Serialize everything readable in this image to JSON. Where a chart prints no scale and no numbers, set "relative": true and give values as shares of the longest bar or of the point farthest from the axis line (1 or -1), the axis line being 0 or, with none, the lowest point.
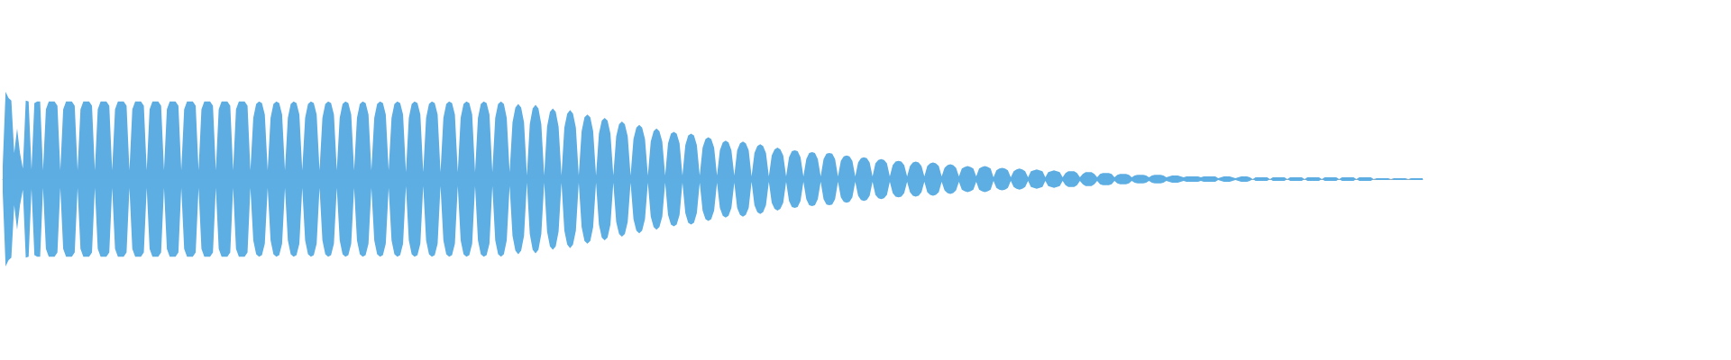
{
  "chart_data": {
    "type": "area",
    "relative": true,
    "categories": [
      null,
      null,
      null,
      null,
      null,
      null,
      null,
      null,
      null,
      null,
      null,
      null,
      null,
      null,
      null,
      null,
      null,
      null,
      null,
      null,
      null,
      null,
      null,
      null,
      null,
      null,
      null,
      null,
      null,
      null,
      null,
      null,
      null,
      null,
      null,
      null,
      null,
      null,
      null,
      null,
      null,
      null,
      null,
      null,
      null,
      null,
      null,
      null,
      null,
      null,
      null,
      null,
      null,
      null,
      null,
      null,
      null,
      null,
      null,
      null,
      null,
      null,
      null,
      null,
      null,
      null,
      null,
      null,
      null,
      null,
      null,
      null,
      null,
      null,
      null,
      null,
      null,
      null,
      null,
      null,
      null,
      null,
      null,
      null,
      null,
      null,
      null,
      null,
      null,
      null,
      null,
      null,
      null,
      null,
      null,
      null,
      null,
      null,
      null,
      null,
      null,
      null,
      null,
      null,
      null,
      null,
      null,
      null,
      null,
      null,
      null,
      null,
      null,
      null,
      null,
      null,
      null,
      null,
      null,
      null,
      null,
      null,
      null,
      null,
      null,
      null,
      null,
      null,
      null,
      null,
      null,
      null,
      null,
      null,
      null,
      null,
      null,
      null,
      null,
      null,
      null,
      null,
      null,
      null,
      null,
      null,
      null,
      null,
      null,
      null,
      null,
      null,
      null,
      null,
      null,
      null,
      null,
      null,
      null,
      null,
      null,
      null,
      null,
      null,
      null,
      null,
      null,
      null,
      null,
      null,
      null,
      null,
      null,
      null,
      null,
      null,
      null,
      null,
      null,
      null,
      null,
      null,
      null,
      null,
      null,
      null,
      null,
      null,
      null,
      null,
      null,
      null,
      null,
      null,
      null,
      null,
      null,
      null,
      null,
      null,
      null,
      null,
      null,
      null,
      null,
      null,
      null,
      null,
      null,
      null,
      null,
      null,
      null,
      null,
      null,
      null,
      null,
      null,
      null,
      null,
      null,
      null,
      null,
      null,
      null,
      null,
      null,
      null,
      null,
      null,
      null,
      null,
      null,
      null,
      null,
      null,
      null,
      null,
      null,
      null,
      null,
      null,
      null,
      null,
      null,
      null,
      null,
      null,
      null,
      null,
      null,
      null,
      null,
      null,
      null,
      null,
      null,
      null,
      null,
      null,
      null,
      null,
      null,
      null,
      null,
      null,
      null,
      null,
      null,
      null,
      null,
      null,
      null,
      null,
      null,
      null,
      null,
      null,
      null,
      null,
      null,
      null,
      null,
      null,
      null,
      null,
      null,
      null,
      null,
      null,
      null,
      null,
      null,
      null,
      null,
      null,
      null,
      null,
      null,
      null,
      null,
      null,
      null,
      null,
      null,
      null,
      null,
      null,
      null,
      null,
      null,
      null,
      null,
      null,
      null,
      null,
      null,
      null,
      null,
      null,
      null,
      null,
      null,
      null,
      null,
      null,
      null,
      null,
      null,
      null,
      null,
      null,
      null,
      null,
      null,
      null,
      null,
      null,
      null,
      null,
      null,
      null,
      null,
      null,
      null,
      null,
      null,
      null,
      null,
      null,
      null,
      null,
      null,
      null,
      null,
      null,
      null,
      null,
      null,
      null,
      null,
      null,
      null,
      null,
      null,
      null,
      null,
      null,
      null,
      null,
      null,
      null,
      null,
      null,
      null,
      null,
      null,
      null,
      null,
      null,
      null,
      null,
      null,
      null,
      null,
      null,
      null,
      null,
      null,
      null,
      null,
      null,
      null,
      null,
      null,
      null,
      null,
      null,
      null,
      null,
      null,
      null,
      null,
      null,
      null,
      null,
      null,
      null,
      null,
      null,
      null,
      null,
      null,
      null,
      null,
      null,
      null,
      null,
      null,
      null,
      null,
      null,
      null,
      null,
      null,
      null,
      null,
      null,
      null,
      null,
      null,
      null,
      null,
      null,
      null,
      null,
      null,
      null,
      null,
      null,
      null,
      null,
      null,
      null,
      null,
      null,
      null,
      null,
      null,
      null,
      null,
      null,
      null,
      null,
      null,
      null,
      null,
      null,
      null,
      null,
      null,
      null,
      null,
      null,
      null,
      null,
      null,
      null,
      null,
      null,
      null,
      null,
      null,
      null,
      null,
      null,
      null,
      null,
      null,
      null,
      null,
      null,
      null,
      null,
      null,
      null,
      null,
      null,
      null,
      null,
      null,
      null,
      null,
      null
    ],
    "series": [
      {
        "color": "#5dade2",
        "values": [
          0.15,
          1,
          0.93,
          0.9,
          0.3,
          0.58,
          0.3,
          0.12,
          0.9,
          0.89,
          0.11,
          0.87,
          0.89,
          0.89,
          0.1,
          0.8,
          0.89,
          0.89,
          0.89,
          0.84,
          0.1,
          0.8,
          0.89,
          0.89,
          0.89,
          0.84,
          0.1,
          0.8,
          0.89,
          0.89,
          0.89,
          0.84,
          0.1,
          0.8,
          0.89,
          0.89,
          0.89,
          0.84,
          0.1,
          0.8,
          0.89,
          0.89,
          0.89,
          0.84,
          0.1,
          0.8,
          0.89,
          0.89,
          0.89,
          0.84,
          0.1,
          0.8,
          0.89,
          0.89,
          0.89,
          0.84,
          0.1,
          0.8,
          0.89,
          0.89,
          0.89,
          0.84,
          0.1,
          0.8,
          0.89,
          0.89,
          0.89,
          0.84,
          0.1,
          0.8,
          0.89,
          0.89,
          0.89,
          0.84,
          0.1,
          0.8,
          0.89,
          0.89,
          0.89,
          0.84,
          0.1,
          0.8,
          0.89,
          0.89,
          0.89,
          0.84,
          0.1,
          0.7,
          0.86,
          0.89,
          0.87,
          0.74,
          0.1,
          0.7,
          0.86,
          0.89,
          0.87,
          0.74,
          0.1,
          0.7,
          0.86,
          0.89,
          0.87,
          0.74,
          0.1,
          0.7,
          0.86,
          0.89,
          0.87,
          0.74,
          0.1,
          0.7,
          0.86,
          0.89,
          0.87,
          0.74,
          0.1,
          0.7,
          0.86,
          0.89,
          0.87,
          0.74,
          0.1,
          0.7,
          0.86,
          0.89,
          0.87,
          0.74,
          0.1,
          0.7,
          0.86,
          0.89,
          0.87,
          0.74,
          0.1,
          0.7,
          0.86,
          0.89,
          0.87,
          0.74,
          0.08,
          0.7,
          0.86,
          0.89,
          0.87,
          0.74,
          0.08,
          0.7,
          0.86,
          0.89,
          0.87,
          0.74,
          0.08,
          0.7,
          0.86,
          0.89,
          0.87,
          0.74,
          0.08,
          0.7,
          0.86,
          0.89,
          0.87,
          0.74,
          0.08,
          0.7,
          0.86,
          0.89,
          0.87,
          0.74,
          0.08,
          0.7,
          0.86,
          0.89,
          0.86,
          0.7,
          0.08,
          0.65,
          0.82,
          0.86,
          0.82,
          0.65,
          0.04,
          0.63,
          0.81,
          0.85,
          0.81,
          0.63,
          0.04,
          0.6,
          0.77,
          0.81,
          0.77,
          0.6,
          0.04,
          0.59,
          0.75,
          0.79,
          0.75,
          0.59,
          0.04,
          0.55,
          0.71,
          0.74,
          0.71,
          0.55,
          0.04,
          0.52,
          0.67,
          0.7,
          0.67,
          0.52,
          0.04,
          0.49,
          0.63,
          0.66,
          0.63,
          0.49,
          0.04,
          0.46,
          0.59,
          0.62,
          0.59,
          0.46,
          0.04,
          0.43,
          0.55,
          0.58,
          0.55,
          0.43,
          0.04,
          0.41,
          0.52,
          0.54,
          0.52,
          0.41,
          0.04,
          0.39,
          0.5,
          0.52,
          0.5,
          0.39,
          0.04,
          0.36,
          0.46,
          0.48,
          0.46,
          0.36,
          0.04,
          0.33,
          0.42,
          0.44,
          0.42,
          0.33,
          0.04,
          0.33,
          0.41,
          0.43,
          0.41,
          0.33,
          0.03,
          0.3,
          0.38,
          0.4,
          0.38,
          0.3,
          0.03,
          0.27,
          0.34,
          0.36,
          0.34,
          0.27,
          0.03,
          0.25,
          0.32,
          0.33,
          0.32,
          0.25,
          0.03,
          0.23,
          0.3,
          0.31,
          0.3,
          0.23,
          0.03,
          0.23,
          0.29,
          0.3,
          0.29,
          0.23,
          0.03,
          0.21,
          0.26,
          0.27,
          0.26,
          0.21,
          0.03,
          0.19,
          0.24,
          0.25,
          0.24,
          0.19,
          0.03,
          0.18,
          0.22,
          0.23,
          0.22,
          0.18,
          0.03,
          0.16,
          0.2,
          0.21,
          0.2,
          0.16,
          0.03,
          0.15,
          0.19,
          0.2,
          0.19,
          0.15,
          0.03,
          0.15,
          0.18,
          0.19,
          0.18,
          0.15,
          0.03,
          0.13,
          0.16,
          0.17,
          0.16,
          0.13,
          0.03,
          0.12,
          0.14,
          0.15,
          0.14,
          0.12,
          0.03,
          0.12,
          0.14,
          0.15,
          0.14,
          0.12,
          0.02,
          0.1,
          0.12,
          0.13,
          0.12,
          0.1,
          0.02,
          0.09,
          0.11,
          0.12,
          0.11,
          0.09,
          0.02,
          0.09,
          0.1,
          0.11,
          0.1,
          0.09,
          0.02,
          0.08,
          0.09,
          0.1,
          0.09,
          0.08,
          0.02,
          0.07,
          0.09,
          0.09,
          0.09,
          0.07,
          0.02,
          0.06,
          0.08,
          0.08,
          0.08,
          0.06,
          0.02,
          0.06,
          0.07,
          0.07,
          0.07,
          0.06,
          0.02,
          0.05,
          0.06,
          0.06,
          0.06,
          0.05,
          0.02,
          0.04,
          0.05,
          0.05,
          0.05,
          0.04,
          0.02,
          0.04,
          0.05,
          0.05,
          0.05,
          0.04,
          0.02,
          0.03,
          0.04,
          0.04,
          0.04,
          0.03,
          0.02,
          0.03,
          0.03,
          0.03,
          0.03,
          0.03,
          0.02,
          0.03,
          0.03,
          0.03,
          0.03,
          0.03,
          0.01,
          0.02,
          0.03,
          0.03,
          0.03,
          0.02,
          0.01,
          0.02,
          0.03,
          0.03,
          0.03,
          0.02,
          0,
          0.02,
          0.02,
          0.02,
          0.02,
          0.02,
          0,
          0.02,
          0.02,
          0.02,
          0.02,
          0.02,
          0,
          0.02,
          0.02,
          0.02,
          0.02,
          0.02,
          0,
          0.02,
          0.02,
          0.02,
          0.02,
          0.02,
          0,
          0.02,
          0.02,
          0.02,
          0.02,
          0.02,
          0,
          0.02,
          0.02,
          0.02,
          0.02,
          0.02,
          0,
          0.02,
          0.02,
          0.02,
          0.02,
          0.02,
          0,
          0.01,
          0.01,
          0.01,
          0.01,
          0.01,
          0,
          0.01,
          0.01,
          0.01,
          0.01,
          0.01,
          0,
          0.01,
          0.01,
          0.01,
          0.01,
          0.01
        ]
      },
      {
        "color": "#5daee2",
        "values": [
          -0.15,
          -1,
          -0.93,
          -0.9,
          -0.3,
          -0.58,
          -0.3,
          -0.12,
          -0.9,
          -0.89,
          -0.11,
          -0.87,
          -0.89,
          -0.89,
          -0.1,
          -0.8,
          -0.89,
          -0.89,
          -0.89,
          -0.84,
          -0.1,
          -0.8,
          -0.89,
          -0.89,
          -0.89,
          -0.84,
          -0.1,
          -0.8,
          -0.89,
          -0.89,
          -0.89,
          -0.84,
          -0.1,
          -0.8,
          -0.89,
          -0.89,
          -0.89,
          -0.84,
          -0.1,
          -0.8,
          -0.89,
          -0.89,
          -0.89,
          -0.84,
          -0.1,
          -0.8,
          -0.89,
          -0.89,
          -0.89,
          -0.84,
          -0.1,
          -0.8,
          -0.89,
          -0.89,
          -0.89,
          -0.84,
          -0.1,
          -0.8,
          -0.89,
          -0.89,
          -0.89,
          -0.84,
          -0.1,
          -0.8,
          -0.89,
          -0.89,
          -0.89,
          -0.84,
          -0.1,
          -0.8,
          -0.89,
          -0.89,
          -0.89,
          -0.84,
          -0.1,
          -0.8,
          -0.89,
          -0.89,
          -0.89,
          -0.84,
          -0.1,
          -0.8,
          -0.89,
          -0.89,
          -0.89,
          -0.84,
          -0.1,
          -0.7,
          -0.86,
          -0.89,
          -0.87,
          -0.74,
          -0.1,
          -0.7,
          -0.86,
          -0.89,
          -0.87,
          -0.74,
          -0.1,
          -0.7,
          -0.86,
          -0.89,
          -0.87,
          -0.74,
          -0.1,
          -0.7,
          -0.86,
          -0.89,
          -0.87,
          -0.74,
          -0.1,
          -0.7,
          -0.86,
          -0.89,
          -0.87,
          -0.74,
          -0.1,
          -0.7,
          -0.86,
          -0.89,
          -0.87,
          -0.74,
          -0.1,
          -0.7,
          -0.86,
          -0.89,
          -0.87,
          -0.74,
          -0.1,
          -0.7,
          -0.86,
          -0.89,
          -0.87,
          -0.74,
          -0.1,
          -0.7,
          -0.86,
          -0.89,
          -0.87,
          -0.74,
          -0.08,
          -0.7,
          -0.86,
          -0.89,
          -0.87,
          -0.74,
          -0.08,
          -0.7,
          -0.86,
          -0.89,
          -0.87,
          -0.74,
          -0.08,
          -0.7,
          -0.86,
          -0.89,
          -0.87,
          -0.74,
          -0.08,
          -0.7,
          -0.86,
          -0.89,
          -0.87,
          -0.74,
          -0.08,
          -0.7,
          -0.86,
          -0.89,
          -0.87,
          -0.74,
          -0.08,
          -0.7,
          -0.86,
          -0.89,
          -0.86,
          -0.7,
          -0.08,
          -0.65,
          -0.82,
          -0.86,
          -0.82,
          -0.65,
          -0.04,
          -0.63,
          -0.81,
          -0.85,
          -0.81,
          -0.63,
          -0.04,
          -0.6,
          -0.77,
          -0.81,
          -0.77,
          -0.6,
          -0.04,
          -0.59,
          -0.75,
          -0.79,
          -0.75,
          -0.59,
          -0.04,
          -0.55,
          -0.71,
          -0.74,
          -0.71,
          -0.55,
          -0.04,
          -0.52,
          -0.67,
          -0.7,
          -0.67,
          -0.52,
          -0.04,
          -0.49,
          -0.63,
          -0.66,
          -0.63,
          -0.49,
          -0.04,
          -0.46,
          -0.59,
          -0.62,
          -0.59,
          -0.46,
          -0.04,
          -0.43,
          -0.55,
          -0.58,
          -0.55,
          -0.43,
          -0.04,
          -0.41,
          -0.52,
          -0.54,
          -0.52,
          -0.41,
          -0.04,
          -0.39,
          -0.5,
          -0.52,
          -0.5,
          -0.39,
          -0.04,
          -0.36,
          -0.46,
          -0.48,
          -0.46,
          -0.36,
          -0.04,
          -0.33,
          -0.42,
          -0.44,
          -0.42,
          -0.33,
          -0.04,
          -0.33,
          -0.41,
          -0.43,
          -0.41,
          -0.33,
          -0.03,
          -0.3,
          -0.38,
          -0.4,
          -0.38,
          -0.3,
          -0.03,
          -0.27,
          -0.34,
          -0.36,
          -0.34,
          -0.27,
          -0.03,
          -0.25,
          -0.32,
          -0.33,
          -0.32,
          -0.25,
          -0.03,
          -0.23,
          -0.3,
          -0.31,
          -0.3,
          -0.23,
          -0.03,
          -0.23,
          -0.29,
          -0.3,
          -0.29,
          -0.23,
          -0.03,
          -0.21,
          -0.26,
          -0.27,
          -0.26,
          -0.21,
          -0.03,
          -0.19,
          -0.24,
          -0.25,
          -0.24,
          -0.19,
          -0.03,
          -0.18,
          -0.22,
          -0.23,
          -0.22,
          -0.18,
          -0.03,
          -0.16,
          -0.2,
          -0.21,
          -0.2,
          -0.16,
          -0.03,
          -0.15,
          -0.19,
          -0.2,
          -0.19,
          -0.15,
          -0.03,
          -0.15,
          -0.18,
          -0.19,
          -0.18,
          -0.15,
          -0.03,
          -0.13,
          -0.16,
          -0.17,
          -0.16,
          -0.13,
          -0.03,
          -0.12,
          -0.14,
          -0.15,
          -0.14,
          -0.12,
          -0.03,
          -0.12,
          -0.14,
          -0.15,
          -0.14,
          -0.12,
          -0.02,
          -0.1,
          -0.12,
          -0.13,
          -0.12,
          -0.1,
          -0.02,
          -0.09,
          -0.11,
          -0.12,
          -0.11,
          -0.09,
          -0.02,
          -0.09,
          -0.1,
          -0.11,
          -0.1,
          -0.09,
          -0.02,
          -0.08,
          -0.09,
          -0.1,
          -0.09,
          -0.08,
          -0.02,
          -0.07,
          -0.09,
          -0.09,
          -0.09,
          -0.07,
          -0.02,
          -0.06,
          -0.08,
          -0.08,
          -0.08,
          -0.06,
          -0.02,
          -0.06,
          -0.07,
          -0.07,
          -0.07,
          -0.06,
          -0.02,
          -0.05,
          -0.06,
          -0.06,
          -0.06,
          -0.05,
          -0.02,
          -0.04,
          -0.05,
          -0.05,
          -0.05,
          -0.04,
          -0.02,
          -0.04,
          -0.05,
          -0.05,
          -0.05,
          -0.04,
          -0.02,
          -0.03,
          -0.04,
          -0.04,
          -0.04,
          -0.03,
          -0.02,
          -0.03,
          -0.03,
          -0.03,
          -0.03,
          -0.03,
          -0.02,
          -0.03,
          -0.03,
          -0.03,
          -0.03,
          -0.03,
          -0.01,
          -0.02,
          -0.03,
          -0.03,
          -0.03,
          -0.02,
          -0.01,
          -0.02,
          -0.03,
          -0.03,
          -0.03,
          -0.02,
          0,
          -0.02,
          -0.02,
          -0.02,
          -0.02,
          -0.02,
          0,
          -0.02,
          -0.02,
          -0.02,
          -0.02,
          -0.02,
          0,
          -0.02,
          -0.02,
          -0.02,
          -0.02,
          -0.02,
          0,
          -0.02,
          -0.02,
          -0.02,
          -0.02,
          -0.02,
          0,
          -0.02,
          -0.02,
          -0.02,
          -0.02,
          -0.02,
          0,
          -0.02,
          -0.02,
          -0.02,
          -0.02,
          -0.02,
          0,
          -0.02,
          -0.02,
          -0.02,
          -0.02,
          -0.02,
          0,
          -0.01,
          -0.01,
          -0.01,
          -0.01,
          -0.01,
          0,
          -0.01,
          -0.01,
          -0.01,
          -0.01,
          -0.01,
          0,
          -0.01,
          -0.01,
          -0.01,
          -0.01,
          -0.01
        ]
      }
    ]
  }
}
